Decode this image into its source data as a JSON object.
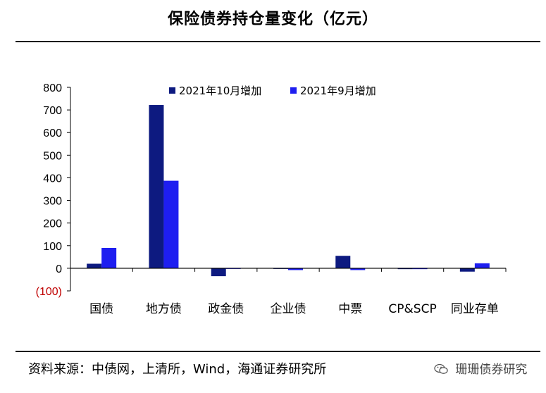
{
  "title": "保险债券持仓量变化（亿元）",
  "source": "资料来源：中债网，上清所，Wind，海通证券研究所",
  "watermark": "珊珊债券研究",
  "chart_data": {
    "type": "bar",
    "categories": [
      "国债",
      "地方债",
      "政金债",
      "企业债",
      "中票",
      "CP&SCP",
      "同业存单"
    ],
    "series": [
      {
        "name": "2021年10月增加",
        "color": "#0d1a80",
        "values": [
          20,
          722,
          -35,
          -3,
          55,
          -4,
          -15
        ]
      },
      {
        "name": "2021年9月增加",
        "color": "#1e1ef0",
        "values": [
          90,
          387,
          -3,
          -8,
          -8,
          -4,
          22
        ]
      }
    ],
    "ylim": [
      -100,
      800
    ],
    "yticks": [
      -100,
      0,
      100,
      200,
      300,
      400,
      500,
      600,
      700,
      800
    ],
    "ytick_labels": [
      "(100)",
      "0",
      "100",
      "200",
      "300",
      "400",
      "500",
      "600",
      "700",
      "800"
    ],
    "negative_tick_color": "#c00000",
    "legend_position": "top-center",
    "grid": false
  }
}
